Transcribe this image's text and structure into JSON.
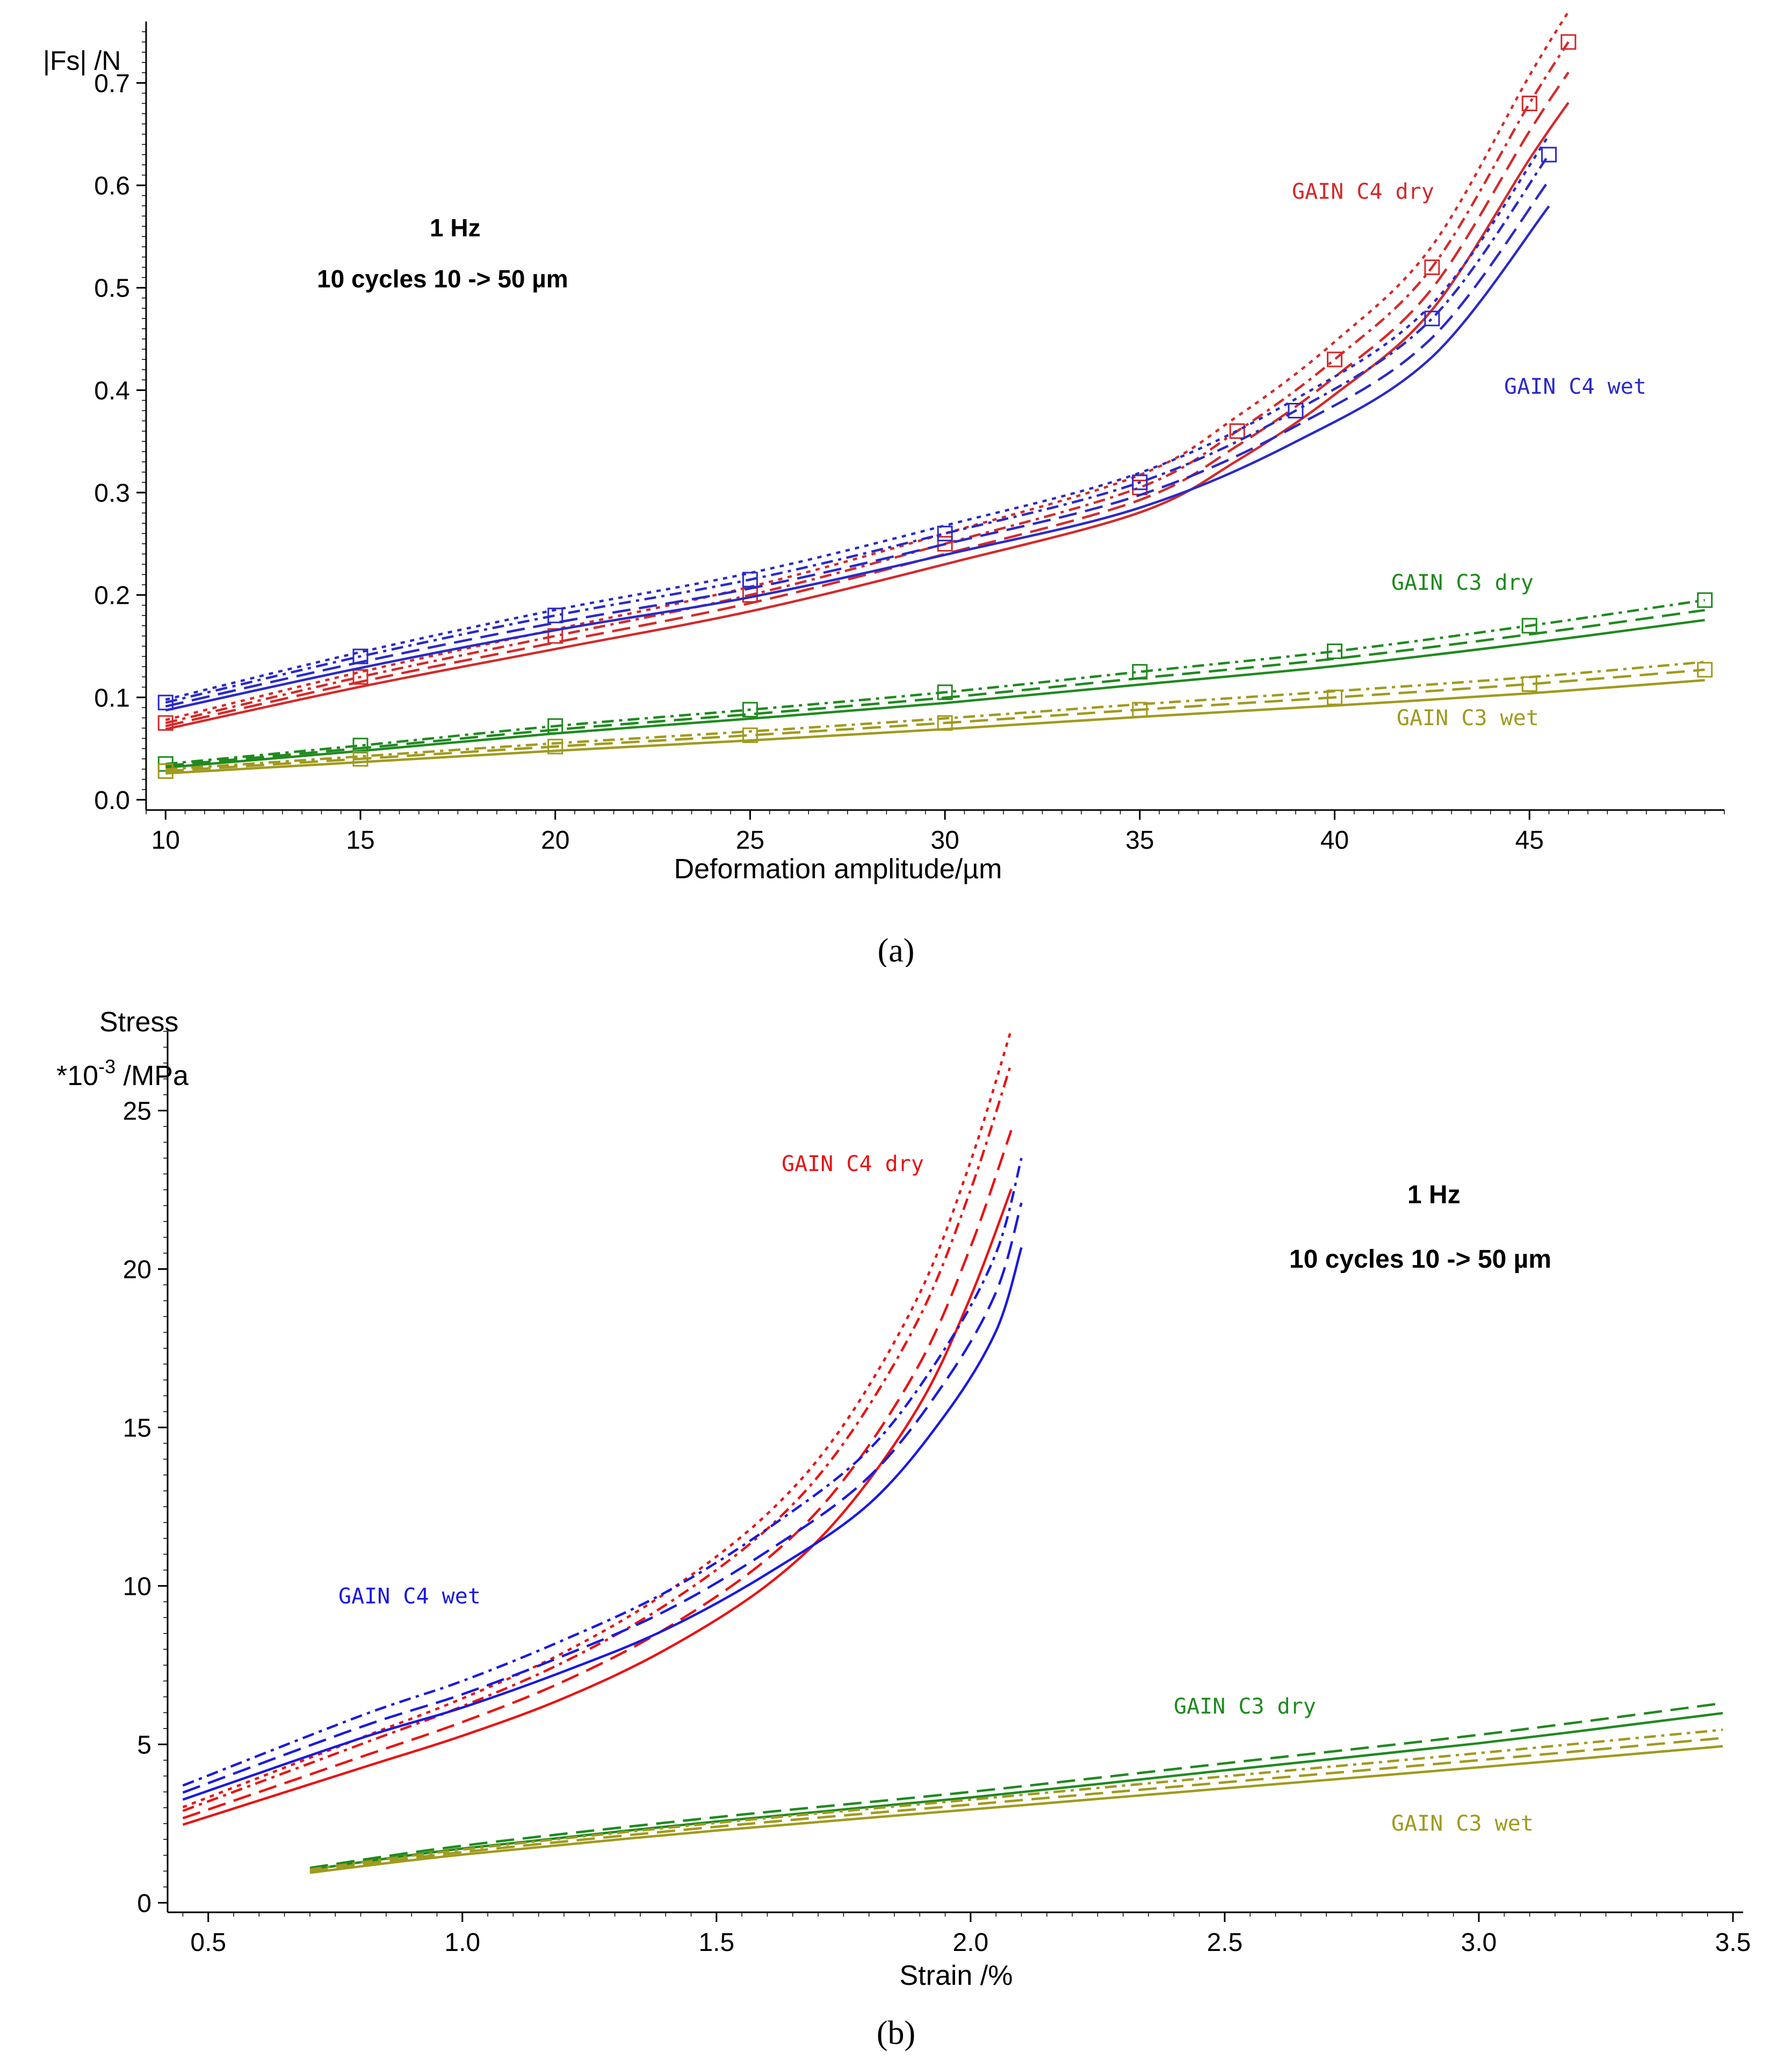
{
  "chart_data": [
    {
      "panel_label": "(a)",
      "type": "line",
      "ylabel": "|Fs| /N",
      "xlabel": "Deformation amplitude/µm",
      "xlim": [
        9.5,
        50
      ],
      "ylim": [
        -0.01,
        0.76
      ],
      "xticks": [
        10,
        15,
        20,
        25,
        30,
        35,
        40,
        45
      ],
      "yticks": [
        "0.0",
        "0.1",
        "0.2",
        "0.3",
        "0.4",
        "0.5",
        "0.6",
        "0.7"
      ],
      "annotation_line1": "1 Hz",
      "annotation_line2": "10 cycles 10 -> 50 µm",
      "grid": false,
      "series": [
        {
          "name": "GAIN C4 dry",
          "color": "#d42a2a",
          "x": [
            10,
            15,
            20,
            25,
            30,
            35,
            37.5,
            40,
            42.5,
            45,
            46
          ],
          "y": [
            0.075,
            0.12,
            0.16,
            0.2,
            0.25,
            0.305,
            0.36,
            0.43,
            0.52,
            0.68,
            0.74
          ]
        },
        {
          "name": "GAIN C4 wet",
          "color": "#2a2ac8",
          "x": [
            10,
            15,
            20,
            25,
            30,
            35,
            39,
            42.5,
            45.5
          ],
          "y": [
            0.095,
            0.14,
            0.18,
            0.215,
            0.26,
            0.31,
            0.38,
            0.47,
            0.63
          ]
        },
        {
          "name": "GAIN C3 dry",
          "color": "#1f8a1f",
          "x": [
            10,
            15,
            20,
            25,
            30,
            35,
            40,
            45,
            49.5
          ],
          "y": [
            0.035,
            0.053,
            0.072,
            0.088,
            0.105,
            0.125,
            0.145,
            0.17,
            0.195
          ]
        },
        {
          "name": "GAIN C3 wet",
          "color": "#a09a1e",
          "x": [
            10,
            15,
            20,
            25,
            30,
            35,
            40,
            45,
            49.5
          ],
          "y": [
            0.028,
            0.04,
            0.052,
            0.063,
            0.075,
            0.088,
            0.1,
            0.113,
            0.127
          ]
        }
      ]
    },
    {
      "panel_label": "(b)",
      "type": "line",
      "ylabel_line1": "Stress",
      "ylabel_line2_prefix": "*10",
      "ylabel_line2_exp": "-3",
      "ylabel_line2_suffix": " /MPa",
      "xlabel": "Strain /%",
      "xlim": [
        0.42,
        3.52
      ],
      "ylim": [
        -0.3,
        27.5
      ],
      "xticks": [
        "0.5",
        "1.0",
        "1.5",
        "2.0",
        "2.5",
        "3.0",
        "3.5"
      ],
      "yticks": [
        "0",
        "5",
        "10",
        "15",
        "20",
        "25"
      ],
      "annotation_line1": "1 Hz",
      "annotation_line2": "10 cycles 10 -> 50 µm",
      "grid": false,
      "series": [
        {
          "name": "GAIN C4 dry",
          "color": "#e81414",
          "x": [
            0.45,
            0.8,
            1.0,
            1.2,
            1.4,
            1.6,
            1.75,
            1.9,
            2.0,
            2.08
          ],
          "y": [
            2.9,
            5.0,
            6.2,
            7.6,
            9.4,
            11.8,
            14.5,
            18.5,
            22.5,
            26.5
          ]
        },
        {
          "name": "GAIN C4 wet",
          "color": "#1a1ae0",
          "x": [
            0.45,
            0.8,
            1.0,
            1.2,
            1.4,
            1.6,
            1.8,
            1.95,
            2.05,
            2.1
          ],
          "y": [
            3.7,
            5.9,
            7.0,
            8.3,
            9.8,
            11.8,
            14.3,
            17.5,
            20.5,
            23.5
          ]
        },
        {
          "name": "GAIN C3 dry",
          "color": "#1f8a1f",
          "x": [
            0.7,
            1.0,
            1.5,
            2.0,
            2.5,
            3.0,
            3.48
          ],
          "y": [
            1.1,
            1.8,
            2.7,
            3.5,
            4.4,
            5.3,
            6.3
          ]
        },
        {
          "name": "GAIN C3 wet",
          "color": "#a09a1e",
          "x": [
            0.7,
            1.0,
            1.5,
            2.0,
            2.5,
            3.0,
            3.48
          ],
          "y": [
            1.0,
            1.6,
            2.4,
            3.1,
            3.8,
            4.5,
            5.2
          ]
        }
      ]
    }
  ]
}
